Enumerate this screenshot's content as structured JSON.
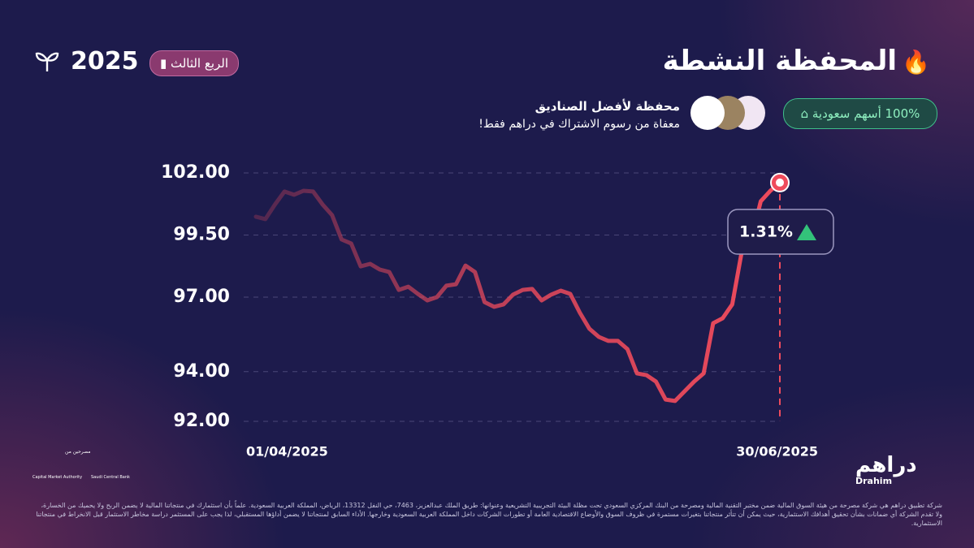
{
  "header": {
    "title": "المحفظة النشطة",
    "year": "2025",
    "quarter": "الربع الثالث"
  },
  "tags": {
    "saudi": "100% أسهم سعودية",
    "headline": "محفظة لأفضل الصناديق",
    "subline": "معفاة من رسوم الاشتراك في دراهم فقط!"
  },
  "chart_data": {
    "type": "line",
    "categories": [
      "01/04/2025",
      null,
      null,
      null,
      null,
      null,
      null,
      null,
      null,
      null,
      null,
      null,
      null,
      null,
      null,
      null,
      null,
      null,
      null,
      null,
      null,
      null,
      null,
      null,
      null,
      null,
      null,
      null,
      null,
      null,
      null,
      null,
      null,
      null,
      null,
      null,
      null,
      null,
      null,
      null,
      null,
      null,
      null,
      null,
      null,
      null,
      null,
      null,
      null,
      null,
      null,
      null,
      null,
      null,
      null,
      "30/06/2025"
    ],
    "series": [
      {
        "color": "#ef4b5c",
        "values": [
          100.24,
          100.14,
          100.73,
          101.25,
          101.12,
          101.28,
          101.25,
          100.73,
          100.3,
          99.32,
          99.16,
          98.24,
          98.34,
          98.11,
          98.01,
          97.29,
          97.42,
          97.13,
          96.87,
          97.0,
          97.46,
          97.52,
          98.27,
          98.01,
          96.8,
          96.61,
          96.71,
          97.1,
          97.29,
          97.33,
          96.87,
          97.1,
          97.26,
          97.13,
          96.38,
          95.73,
          95.4,
          95.24,
          95.24,
          94.91,
          93.93,
          93.86,
          93.6,
          92.88,
          92.82,
          93.21,
          93.6,
          93.93,
          95.95,
          96.15,
          96.71,
          98.83,
          99.32,
          100.86,
          101.28,
          101.61
        ]
      }
    ],
    "ylim": [
      92,
      102
    ],
    "yticks": [
      {
        "value": 92,
        "label": "92.00"
      },
      {
        "value": 94,
        "label": "94.00"
      },
      {
        "value": 97,
        "label": "97.00"
      },
      {
        "value": 99.5,
        "label": "99.50"
      },
      {
        "value": 102,
        "label": "102.00"
      }
    ],
    "annotation": "1.31%"
  },
  "brand": {
    "name": "دراهم",
    "latin": "Drahim"
  },
  "regulators": {
    "label": "مصرحين من",
    "cma": "Capital Market Authority",
    "sama": "Saudi Central Bank"
  },
  "disclaimer": "شركة تطبيق دراهم هي شركة مصرحة من هيئة السوق المالية ضمن مختبر التقنية المالية ومصرحة من البنك المركزي السعودي تحت مظلة البيئة التجريبية التشريعية وعنوانها: طريق الملك عبدالعزيز، 7463، حي النفل 13312، الرياض، المملكة العربية السعودية. علماً بأن استثمارك في منتجاتنا المالية لا يضمن الربح ولا يحميك من الخسارة، ولا تقدم الشركة أي ضمانات بشأن تحقيق أهدافك الاستثمارية، حيث يمكن أن تتأثر منتجاتنا بتغيرات مستمرة في ظروف السوق والأوضاع الاقتصادية العامة أو تطورات الشركات داخل المملكة العربية السعودية وخارجها. الأداء السابق لمنتجاتنا لا يضمن أداؤها المستقبلي، لذا يجب على المستثمر دراسة مخاطر الاستثمار قبل الانخراط في منتجاتنا الاستثمارية."
}
